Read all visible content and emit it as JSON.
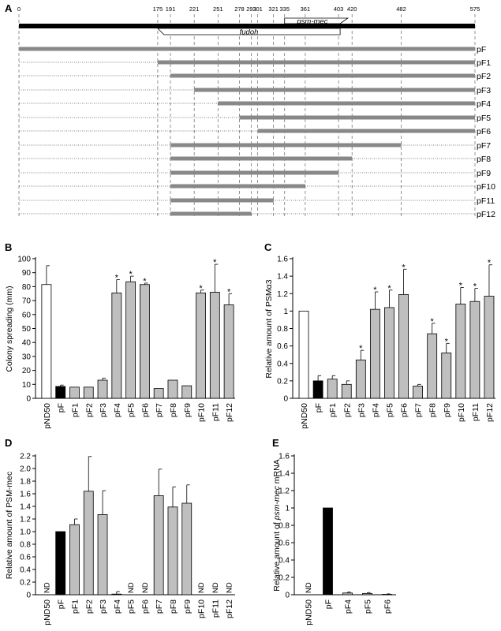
{
  "panel_a": {
    "letter": "A",
    "positions": [
      "0",
      "175",
      "191",
      "221",
      "251",
      "278",
      "293",
      "301",
      "321",
      "335",
      "361",
      "403",
      "420",
      "482",
      "575"
    ],
    "gene_psm_mec": "psm-mec",
    "gene_fudoh": "fudoh",
    "constructs": [
      {
        "name": "pF",
        "start": 0,
        "end": 575
      },
      {
        "name": "pF1",
        "start": 175,
        "end": 575
      },
      {
        "name": "pF2",
        "start": 191,
        "end": 575
      },
      {
        "name": "pF3",
        "start": 221,
        "end": 575
      },
      {
        "name": "pF4",
        "start": 251,
        "end": 575
      },
      {
        "name": "pF5",
        "start": 278,
        "end": 575
      },
      {
        "name": "pF6",
        "start": 301,
        "end": 575
      },
      {
        "name": "pF7",
        "start": 191,
        "end": 482
      },
      {
        "name": "pF8",
        "start": 191,
        "end": 420
      },
      {
        "name": "pF9",
        "start": 191,
        "end": 403
      },
      {
        "name": "pF10",
        "start": 191,
        "end": 361
      },
      {
        "name": "pF11",
        "start": 191,
        "end": 321
      },
      {
        "name": "pF12",
        "start": 191,
        "end": 293
      }
    ]
  },
  "chart_data": [
    {
      "panel": "B",
      "type": "bar",
      "ylabel": "Colony spreading (mm)",
      "ylim": [
        0,
        100
      ],
      "yticks": [
        "0",
        "10",
        "20",
        "30",
        "40",
        "50",
        "60",
        "70",
        "80",
        "90",
        "100"
      ],
      "categories": [
        "pND50",
        "pF",
        "pF1",
        "pF2",
        "pF3",
        "pF4",
        "pF5",
        "pF6",
        "pF7",
        "pF8",
        "pF9",
        "pF10",
        "pF11",
        "pF12"
      ],
      "values": [
        81.5,
        8.5,
        8,
        8,
        13,
        75.5,
        83.5,
        81.5,
        7,
        13,
        9,
        75.5,
        76,
        67
      ],
      "errors": [
        13.5,
        1,
        0,
        0,
        1.5,
        9.5,
        4,
        1,
        0,
        0,
        0,
        2,
        20,
        8
      ],
      "significant": [
        "",
        "",
        "",
        "",
        "",
        "*",
        "*",
        "*",
        "",
        "",
        "",
        "*",
        "*",
        "*"
      ],
      "fills": [
        "white",
        "black",
        "gray",
        "gray",
        "gray",
        "gray",
        "gray",
        "gray",
        "gray",
        "gray",
        "gray",
        "gray",
        "gray",
        "gray"
      ]
    },
    {
      "panel": "C",
      "type": "bar",
      "ylabel": "Relative amount of PSMα3",
      "ylim": [
        0,
        1.6
      ],
      "yticks": [
        "0",
        "0.2",
        "0.4",
        "0.6",
        "0.8",
        "1",
        "1.2",
        "1.4",
        "1.6"
      ],
      "categories": [
        "pND50",
        "pF",
        "pF1",
        "pF2",
        "pF3",
        "pF4",
        "pF5",
        "pF6",
        "pF7",
        "pF8",
        "pF9",
        "pF10",
        "pF11",
        "pF12"
      ],
      "values": [
        1.0,
        0.2,
        0.22,
        0.16,
        0.44,
        1.02,
        1.04,
        1.19,
        0.14,
        0.74,
        0.52,
        1.08,
        1.11,
        1.17
      ],
      "errors": [
        0,
        0.06,
        0.04,
        0.04,
        0.11,
        0.2,
        0.2,
        0.29,
        0.02,
        0.12,
        0.11,
        0.19,
        0.15,
        0.36
      ],
      "significant": [
        "",
        "",
        "",
        "",
        "*",
        "*",
        "*",
        "*",
        "",
        "*",
        "*",
        "*",
        "*",
        "*"
      ],
      "fills": [
        "white",
        "black",
        "gray",
        "gray",
        "gray",
        "gray",
        "gray",
        "gray",
        "gray",
        "gray",
        "gray",
        "gray",
        "gray",
        "gray"
      ]
    },
    {
      "panel": "D",
      "type": "bar",
      "ylabel": "Relative amount of PSM-mec",
      "ylim": [
        0,
        2.2
      ],
      "yticks": [
        "0",
        "0.2",
        "0.4",
        "0.6",
        "0.8",
        "1.0",
        "1.2",
        "1.4",
        "1.6",
        "1.8",
        "2.0",
        "2.2"
      ],
      "categories": [
        "pND50",
        "pF",
        "pF1",
        "pF2",
        "pF3",
        "pF4",
        "pF5",
        "pF6",
        "pF7",
        "pF8",
        "pF9",
        "pF10",
        "pF11",
        "pF12"
      ],
      "values": [
        null,
        1.0,
        1.11,
        1.64,
        1.27,
        0.01,
        null,
        null,
        1.57,
        1.39,
        1.45,
        null,
        null,
        null
      ],
      "errors": [
        0,
        0,
        0.09,
        0.55,
        0.38,
        0.04,
        0,
        0,
        0.42,
        0.32,
        0.29,
        0,
        0,
        0
      ],
      "nd_labels": [
        "ND",
        "",
        "",
        "",
        "",
        "",
        "ND",
        "ND",
        "",
        "",
        "",
        "ND",
        "ND",
        "ND"
      ],
      "fills": [
        "white",
        "black",
        "gray",
        "gray",
        "gray",
        "gray",
        "gray",
        "gray",
        "gray",
        "gray",
        "gray",
        "gray",
        "gray",
        "gray"
      ]
    },
    {
      "panel": "E",
      "type": "bar",
      "ylabel_prefix": "Relative amount of ",
      "ylabel_italic": "psm-mec",
      "ylabel_suffix": " mRNA",
      "ylim": [
        0,
        1.6
      ],
      "yticks": [
        "0",
        "0.2",
        "0.4",
        "0.6",
        "0.8",
        "1",
        "1.2",
        "1.4",
        "1.6"
      ],
      "categories": [
        "pND50",
        "pF",
        "pF4",
        "pF5",
        "pF6"
      ],
      "values": [
        null,
        1.0,
        0.02,
        0.015,
        0.005
      ],
      "errors": [
        0,
        0,
        0.01,
        0.01,
        0.005
      ],
      "nd_labels": [
        "ND",
        "",
        "",
        "",
        ""
      ],
      "fills": [
        "white",
        "black",
        "gray",
        "gray",
        "gray"
      ]
    }
  ]
}
